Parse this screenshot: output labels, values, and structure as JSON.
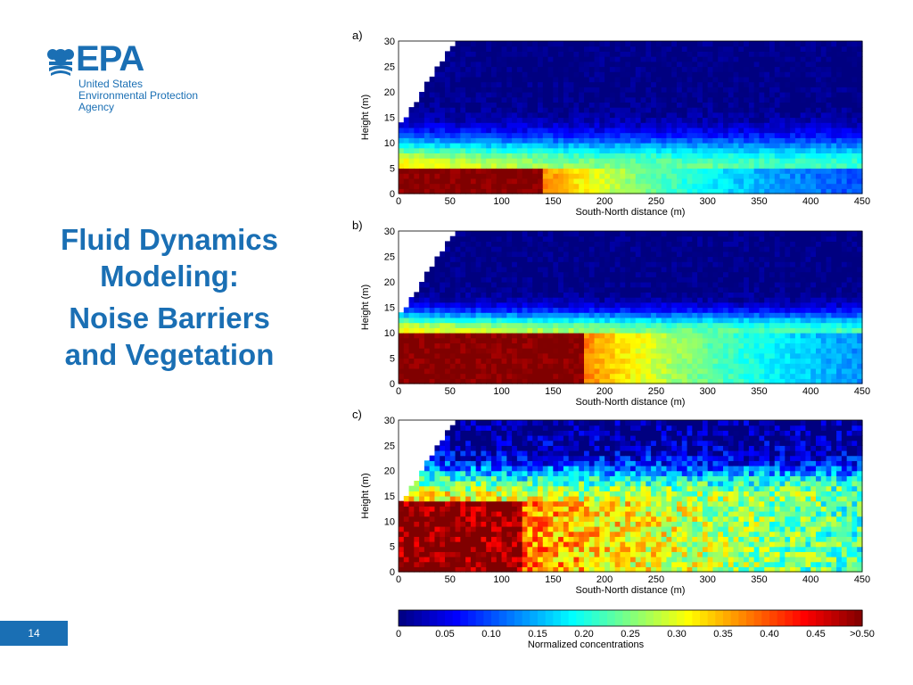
{
  "logo": {
    "name": "EPA",
    "subtitle": [
      "United States",
      "Environmental Protection",
      "Agency"
    ]
  },
  "title": {
    "lines": [
      "Fluid Dynamics",
      "Modeling:",
      "Noise Barriers",
      "and Vegetation"
    ]
  },
  "page_number": "14",
  "colors": {
    "brand_blue": "#1a6fb4"
  },
  "chart_data": [
    {
      "type": "heatmap",
      "panel_label": "a)",
      "xlabel": "South-North distance (m)",
      "ylabel": "Height (m)",
      "x_ticks": [
        0,
        50,
        100,
        150,
        200,
        250,
        300,
        350,
        400,
        450
      ],
      "y_ticks": [
        0,
        5,
        10,
        15,
        20,
        25,
        30
      ],
      "xlim": [
        0,
        450
      ],
      "ylim": [
        0,
        30
      ],
      "plume": {
        "hot_height": 5,
        "hot_extent_m": 140,
        "spread_height": 14,
        "decay_m": 230,
        "noise": 0.02
      }
    },
    {
      "type": "heatmap",
      "panel_label": "b)",
      "xlabel": "South-North distance (m)",
      "ylabel": "Height (m)",
      "x_ticks": [
        0,
        50,
        100,
        150,
        200,
        250,
        300,
        350,
        400,
        450
      ],
      "y_ticks": [
        0,
        5,
        10,
        15,
        20,
        25,
        30
      ],
      "xlim": [
        0,
        450
      ],
      "ylim": [
        0,
        30
      ],
      "plume": {
        "hot_height": 10,
        "hot_extent_m": 180,
        "spread_height": 16,
        "decay_m": 260,
        "noise": 0.02
      }
    },
    {
      "type": "heatmap",
      "panel_label": "c)",
      "xlabel": "South-North distance (m)",
      "ylabel": "Height (m)",
      "x_ticks": [
        0,
        50,
        100,
        150,
        200,
        250,
        300,
        350,
        400,
        450
      ],
      "y_ticks": [
        0,
        5,
        10,
        15,
        20,
        25,
        30
      ],
      "xlim": [
        0,
        450
      ],
      "ylim": [
        0,
        30
      ],
      "plume": {
        "hot_height": 14,
        "hot_extent_m": 120,
        "spread_height": 24,
        "decay_m": 600,
        "noise": 0.07
      }
    }
  ],
  "colorbar": {
    "xlabel": "Normalized concentrations",
    "ticks": [
      "0",
      "0.05",
      "0.10",
      "0.15",
      "0.20",
      "0.25",
      "0.30",
      "0.35",
      "0.40",
      "0.45",
      ">0.50"
    ],
    "range": [
      0,
      0.5
    ]
  }
}
